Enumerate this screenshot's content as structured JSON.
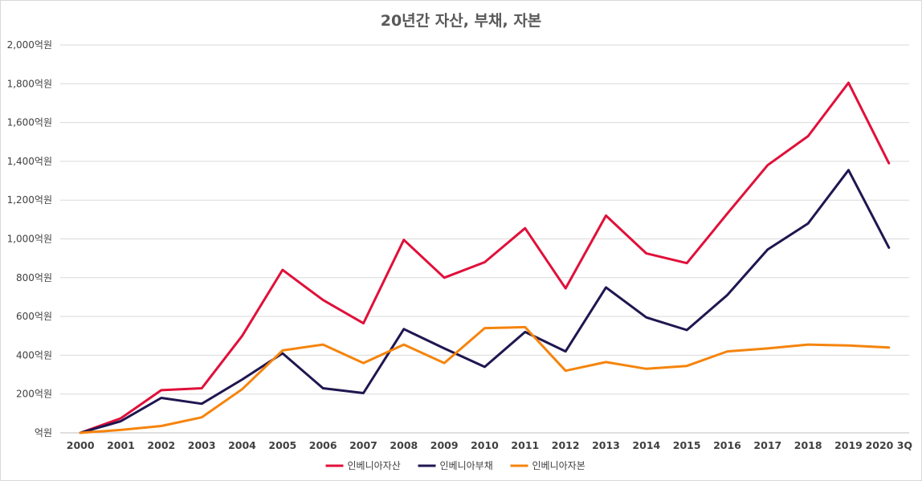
{
  "chart_data": {
    "type": "line",
    "title": "20년간 자산, 부채, 자본",
    "xlabel": "",
    "ylabel": "",
    "unit": "억원",
    "ylim": [
      0,
      2000
    ],
    "yticks": [
      0,
      200,
      400,
      600,
      800,
      1000,
      1200,
      1400,
      1600,
      1800,
      2000
    ],
    "ytick_labels": [
      "억원",
      "200억원",
      "400억원",
      "600억원",
      "800억원",
      "1,000억원",
      "1,200억원",
      "1,400억원",
      "1,600억원",
      "1,800억원",
      "2,000억원"
    ],
    "categories": [
      "2000",
      "2001",
      "2002",
      "2003",
      "2004",
      "2005",
      "2006",
      "2007",
      "2008",
      "2009",
      "2010",
      "2011",
      "2012",
      "2013",
      "2014",
      "2015",
      "2016",
      "2017",
      "2018",
      "2019",
      "2020 3Q"
    ],
    "grid": true,
    "legend_position": "bottom",
    "series": [
      {
        "name": "인베니아자산",
        "color": "#e0103a",
        "values": [
          0,
          75,
          220,
          230,
          500,
          840,
          685,
          565,
          995,
          800,
          880,
          1055,
          745,
          1120,
          925,
          875,
          1130,
          1380,
          1530,
          1805,
          1390
        ]
      },
      {
        "name": "인베니아부채",
        "color": "#1f1650",
        "values": [
          0,
          60,
          180,
          150,
          275,
          410,
          230,
          205,
          535,
          435,
          340,
          520,
          420,
          750,
          595,
          530,
          710,
          945,
          1080,
          1355,
          955
        ]
      },
      {
        "name": "인베니아자본",
        "color": "#f5840c",
        "values": [
          0,
          15,
          35,
          80,
          225,
          425,
          455,
          360,
          455,
          360,
          540,
          545,
          320,
          365,
          330,
          345,
          420,
          435,
          455,
          450,
          440
        ]
      }
    ]
  }
}
